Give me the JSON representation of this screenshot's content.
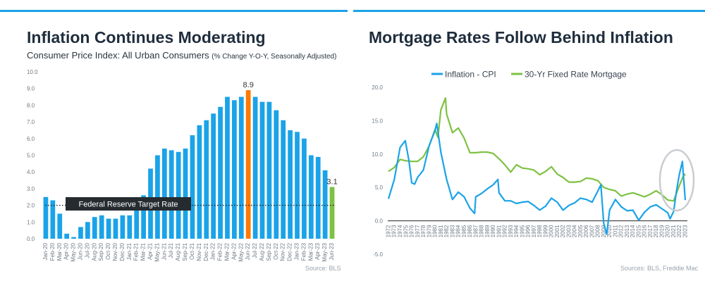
{
  "left": {
    "title": "Inflation Continues Moderating",
    "subtitle": "Consumer Price Index: All Urban Consumers",
    "subtitle_note": "(% Change Y-O-Y, Seasonally Adjusted)",
    "source": "Source: BLS"
  },
  "right": {
    "title": "Mortgage Rates Follow Behind Inflation",
    "source": "Sources: BLS, Freddie Mac"
  },
  "colors": {
    "accent_bar": "#1aa3e8",
    "bar": "#1aa3e8",
    "peak": "#ff7a00",
    "latest": "#7dc242",
    "cpi_line": "#1aa3e8",
    "mortgage_line": "#7dc242",
    "fed_box": "#262b30"
  },
  "chart_data": [
    {
      "type": "bar",
      "categories": [
        "Jan-20",
        "Feb-20",
        "Mar-20",
        "Apr-20",
        "May-20",
        "Jun-20",
        "Jul-20",
        "Aug-20",
        "Sep-20",
        "Oct-20",
        "Nov-20",
        "Dec-20",
        "Jan-21",
        "Feb-21",
        "Mar-21",
        "Apr-21",
        "May-21",
        "Jun-21",
        "Jul-21",
        "Aug-21",
        "Sep-21",
        "Oct-21",
        "Nov-21",
        "Dec-21",
        "Jan-22",
        "Feb-22",
        "Mar-22",
        "Apr-22",
        "May-22",
        "Jun-22",
        "Jul-22",
        "Aug-22",
        "Sep-22",
        "Oct-22",
        "Nov-22",
        "Dec-22",
        "Jan-23",
        "Feb-23",
        "Mar-23",
        "Apr-23",
        "May-23",
        "Jun-23"
      ],
      "values": [
        2.5,
        2.3,
        1.5,
        0.3,
        0.1,
        0.7,
        1.0,
        1.3,
        1.4,
        1.2,
        1.2,
        1.4,
        1.4,
        1.7,
        2.6,
        4.2,
        5.0,
        5.4,
        5.3,
        5.2,
        5.4,
        6.2,
        6.8,
        7.1,
        7.5,
        7.9,
        8.5,
        8.3,
        8.5,
        8.9,
        8.5,
        8.2,
        8.2,
        7.7,
        7.1,
        6.5,
        6.4,
        6.0,
        5.0,
        4.9,
        4.1,
        3.1
      ],
      "highlight": {
        "Jun-22": "peak",
        "Jun-23": "latest"
      },
      "data_labels": {
        "Jun-22": "8.9",
        "Jun-23": "3.1"
      },
      "y_ticks": [
        "0.0",
        "1.0",
        "2.0",
        "3.0",
        "4.0",
        "5.0",
        "6.0",
        "7.0",
        "8.0",
        "9.0",
        "10.0"
      ],
      "ylim": [
        0,
        10
      ],
      "reference_line": {
        "label": "Federal Reserve Target Rate",
        "value": 2.0
      }
    },
    {
      "type": "line",
      "x_ticks": [
        "1972",
        "1973",
        "1974",
        "1975",
        "1976",
        "1977",
        "1978",
        "1979",
        "1980",
        "1981",
        "1982",
        "1983",
        "1984",
        "1985",
        "1986",
        "1987",
        "1988",
        "1989",
        "1990",
        "1991",
        "1992",
        "1993",
        "1994",
        "1995",
        "1996",
        "1997",
        "1998",
        "1999",
        "2000",
        "2001",
        "2002",
        "2003",
        "2004",
        "2005",
        "2006",
        "2007",
        "2008",
        "2009",
        "2010",
        "2011",
        "2012",
        "2013",
        "2014",
        "2015",
        "2016",
        "2017",
        "2018",
        "2019",
        "2020",
        "2021",
        "2022",
        "2023"
      ],
      "y_ticks": [
        "-5.0",
        "0.0",
        "5.0",
        "10.0",
        "15.0",
        "20.0"
      ],
      "ylim": [
        -5,
        20
      ],
      "grid": false,
      "legend_position": "top",
      "series": [
        {
          "name": "Inflation - CPI",
          "x": [
            1972,
            1973,
            1974,
            1974.9,
            1975.5,
            1976,
            1976.5,
            1977,
            1978,
            1979,
            1980,
            1980.3,
            1981,
            1982,
            1983,
            1984,
            1985,
            1986,
            1986.8,
            1987,
            1988,
            1989,
            1990,
            1990.8,
            1991,
            1992,
            1993,
            1994,
            1995,
            1996,
            1997,
            1998,
            1999,
            2000,
            2001,
            2002,
            2003,
            2004,
            2005,
            2006,
            2007,
            2008,
            2008.5,
            2009,
            2009.5,
            2010,
            2011,
            2012,
            2013,
            2014,
            2015,
            2016,
            2017,
            2018,
            2019,
            2020,
            2020.4,
            2021,
            2021.5,
            2022,
            2022.5,
            2023
          ],
          "values": [
            3.3,
            6.2,
            11.0,
            12.0,
            9.1,
            5.7,
            5.5,
            6.5,
            7.6,
            11.3,
            13.5,
            14.6,
            10.3,
            6.2,
            3.2,
            4.3,
            3.6,
            1.9,
            1.1,
            3.6,
            4.1,
            4.8,
            5.4,
            6.2,
            4.2,
            3.0,
            3.0,
            2.6,
            2.8,
            2.9,
            2.3,
            1.6,
            2.2,
            3.4,
            2.8,
            1.6,
            2.3,
            2.7,
            3.4,
            3.2,
            2.8,
            4.5,
            5.4,
            -0.4,
            -2.0,
            1.6,
            3.2,
            2.1,
            1.5,
            1.6,
            0.1,
            1.3,
            2.1,
            2.4,
            1.8,
            1.2,
            0.3,
            1.4,
            4.5,
            7.0,
            8.9,
            3.1
          ]
        },
        {
          "name": "30-Yr Fixed Rate Mortgage",
          "x": [
            1972,
            1973,
            1974,
            1975,
            1976,
            1977,
            1978,
            1979,
            1980,
            1980.5,
            1981,
            1981.8,
            1982,
            1983,
            1984,
            1985,
            1986,
            1987,
            1988,
            1989,
            1990,
            1991,
            1992,
            1993,
            1994,
            1995,
            1996,
            1997,
            1998,
            1999,
            2000,
            2001,
            2002,
            2003,
            2004,
            2005,
            2006,
            2007,
            2008,
            2009,
            2010,
            2011,
            2012,
            2013,
            2014,
            2015,
            2016,
            2017,
            2018,
            2019,
            2020,
            2021,
            2022,
            2022.8,
            2023
          ],
          "values": [
            7.4,
            8.0,
            9.2,
            9.0,
            8.9,
            8.9,
            9.6,
            11.2,
            13.7,
            12.5,
            16.6,
            18.4,
            16.0,
            13.2,
            13.9,
            12.4,
            10.2,
            10.2,
            10.3,
            10.3,
            10.1,
            9.3,
            8.4,
            7.3,
            8.4,
            7.9,
            7.8,
            7.6,
            6.9,
            7.4,
            8.1,
            7.0,
            6.5,
            5.8,
            5.8,
            5.9,
            6.4,
            6.3,
            6.0,
            5.0,
            4.7,
            4.5,
            3.7,
            4.0,
            4.2,
            3.9,
            3.6,
            4.0,
            4.5,
            3.9,
            3.1,
            3.0,
            5.3,
            7.0,
            6.8
          ]
        }
      ]
    }
  ]
}
